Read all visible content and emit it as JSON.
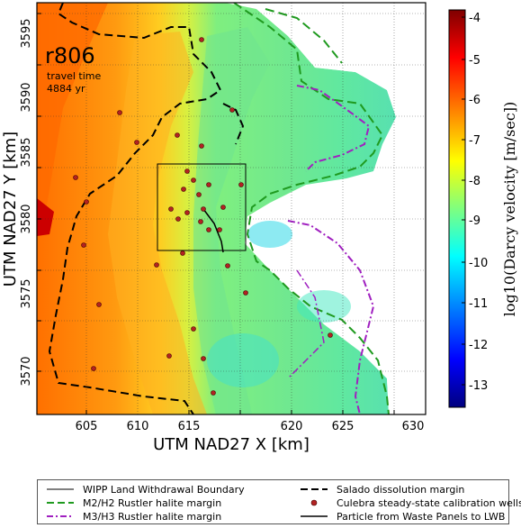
{
  "map": {
    "run_id": "r806",
    "travel_time_label": "travel time",
    "travel_time_value": "4884 yr",
    "x_axis_label": "UTM NAD27 X [km]",
    "y_axis_label": "UTM NAD27 Y [km]",
    "x_ticks": [
      "605",
      "610",
      "615",
      "620",
      "625",
      "630"
    ],
    "y_ticks": [
      "3570",
      "3575",
      "3580",
      "3585",
      "3590",
      "3595"
    ]
  },
  "colorbar": {
    "label": "log10(Darcy velocity [m/sec])",
    "ticks": [
      "-4",
      "-5",
      "-6",
      "-7",
      "-8",
      "-9",
      "-10",
      "-11",
      "-12",
      "-13"
    ],
    "colors": [
      "#7f0000",
      "#ff0000",
      "#ff7f00",
      "#ffff00",
      "#7fff7f",
      "#00ffff",
      "#007fff",
      "#0000ff",
      "#00007f"
    ]
  },
  "legend": {
    "items": [
      {
        "label": "WIPP Land Withdrawal Boundary",
        "style": "thin-solid-black"
      },
      {
        "label": "Salado dissolution margin",
        "style": "dashed-black"
      },
      {
        "label": "M2/H2 Rustler halite margin",
        "style": "dashed-green"
      },
      {
        "label": "Culebra steady-state calibration wells",
        "style": "red-dot"
      },
      {
        "label": "M3/H3 Rustler halite margin",
        "style": "dashdot-purple"
      },
      {
        "label": "Particle from Waste Panels to LWB",
        "style": "solid-black"
      }
    ]
  },
  "colors": {
    "salado_margin": "#000000",
    "m2h2_margin": "#1f9a1f",
    "m3h3_margin": "#a020c0",
    "wells": "#b22222",
    "particle": "#000000"
  }
}
